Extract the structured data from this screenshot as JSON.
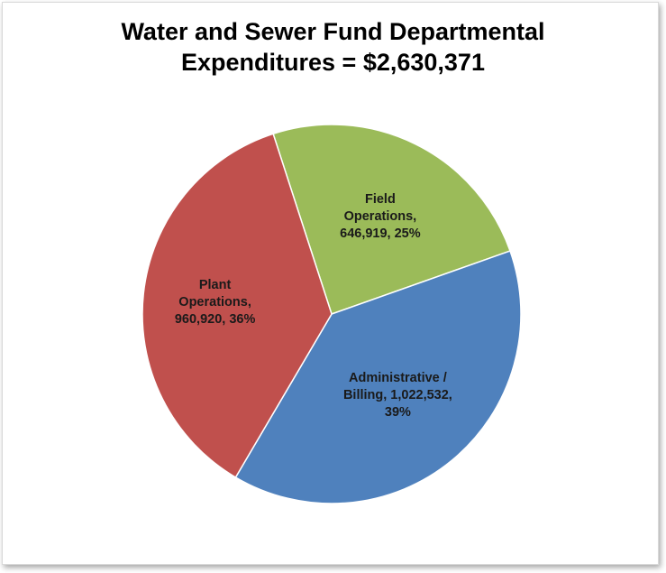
{
  "chart_data": {
    "type": "pie",
    "title_lines": [
      "Water and Sewer Fund Departmental",
      "Expenditures = $2,630,371"
    ],
    "slices": [
      {
        "name": "Field Operations",
        "value": 646919,
        "percent": 25,
        "color": "#9bbb59",
        "label_lines": [
          "Field",
          "Operations,",
          "646,919, 25%"
        ]
      },
      {
        "name": "Administrative / Billing",
        "value": 1022532,
        "percent": 39,
        "color": "#4f81bd",
        "label_lines": [
          "Administrative /",
          "Billing, 1,022,532,",
          "39%"
        ]
      },
      {
        "name": "Plant Operations",
        "value": 960920,
        "percent": 36,
        "color": "#c0504d",
        "label_lines": [
          "Plant",
          "Operations,",
          "960,920, 36%"
        ]
      }
    ]
  }
}
